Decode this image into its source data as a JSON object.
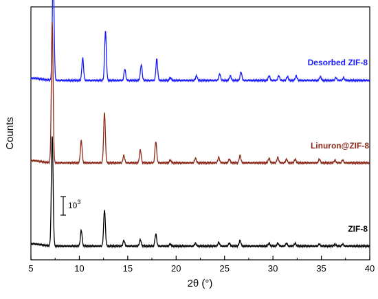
{
  "chart_data": {
    "type": "line",
    "xlabel": "2θ (°)",
    "ylabel": "Counts",
    "xlim": [
      5,
      40
    ],
    "x_ticks": [
      "5",
      "10",
      "15",
      "20",
      "25",
      "30",
      "35",
      "40"
    ],
    "grid": false,
    "scale_bar_label": "10",
    "scale_bar_exponent": "3",
    "scale_bar_value": 1000,
    "series": [
      {
        "name": "Desorbed ZIF-8",
        "color": "#1a1aff",
        "baseline": 0,
        "peaks": [
          {
            "x": 7.3,
            "h": 5.9
          },
          {
            "x": 10.35,
            "h": 1.2
          },
          {
            "x": 12.7,
            "h": 2.65
          },
          {
            "x": 14.7,
            "h": 0.6
          },
          {
            "x": 16.4,
            "h": 0.85
          },
          {
            "x": 18.0,
            "h": 1.15
          },
          {
            "x": 19.4,
            "h": 0.15
          },
          {
            "x": 22.1,
            "h": 0.25
          },
          {
            "x": 24.5,
            "h": 0.35
          },
          {
            "x": 25.6,
            "h": 0.25
          },
          {
            "x": 26.7,
            "h": 0.45
          },
          {
            "x": 29.6,
            "h": 0.25
          },
          {
            "x": 30.6,
            "h": 0.25
          },
          {
            "x": 31.5,
            "h": 0.2
          },
          {
            "x": 32.4,
            "h": 0.25
          },
          {
            "x": 34.9,
            "h": 0.2
          },
          {
            "x": 36.5,
            "h": 0.15
          },
          {
            "x": 37.3,
            "h": 0.15
          }
        ]
      },
      {
        "name": "Linuron@ZIF-8",
        "color": "#8b2a1a",
        "baseline": 0,
        "peaks": [
          {
            "x": 7.2,
            "h": 7.6
          },
          {
            "x": 10.2,
            "h": 1.2
          },
          {
            "x": 12.6,
            "h": 2.7
          },
          {
            "x": 14.6,
            "h": 0.4
          },
          {
            "x": 16.3,
            "h": 0.7
          },
          {
            "x": 17.9,
            "h": 1.15
          },
          {
            "x": 19.4,
            "h": 0.15
          },
          {
            "x": 22.0,
            "h": 0.25
          },
          {
            "x": 24.4,
            "h": 0.3
          },
          {
            "x": 25.5,
            "h": 0.2
          },
          {
            "x": 26.6,
            "h": 0.4
          },
          {
            "x": 29.6,
            "h": 0.25
          },
          {
            "x": 30.5,
            "h": 0.3
          },
          {
            "x": 31.4,
            "h": 0.2
          },
          {
            "x": 32.3,
            "h": 0.2
          },
          {
            "x": 34.8,
            "h": 0.2
          },
          {
            "x": 36.4,
            "h": 0.15
          },
          {
            "x": 37.2,
            "h": 0.15
          }
        ]
      },
      {
        "name": "ZIF-8",
        "color": "#000000",
        "baseline": 0,
        "peaks": [
          {
            "x": 7.2,
            "h": 5.95
          },
          {
            "x": 10.2,
            "h": 0.85
          },
          {
            "x": 12.6,
            "h": 1.95
          },
          {
            "x": 14.6,
            "h": 0.3
          },
          {
            "x": 16.3,
            "h": 0.35
          },
          {
            "x": 17.9,
            "h": 0.65
          },
          {
            "x": 19.4,
            "h": 0.1
          },
          {
            "x": 22.0,
            "h": 0.15
          },
          {
            "x": 24.4,
            "h": 0.2
          },
          {
            "x": 25.5,
            "h": 0.15
          },
          {
            "x": 26.6,
            "h": 0.3
          },
          {
            "x": 29.6,
            "h": 0.15
          },
          {
            "x": 30.5,
            "h": 0.15
          },
          {
            "x": 31.4,
            "h": 0.15
          },
          {
            "x": 32.3,
            "h": 0.15
          },
          {
            "x": 34.8,
            "h": 0.1
          },
          {
            "x": 36.4,
            "h": 0.1
          },
          {
            "x": 37.2,
            "h": 0.1
          }
        ]
      }
    ]
  }
}
